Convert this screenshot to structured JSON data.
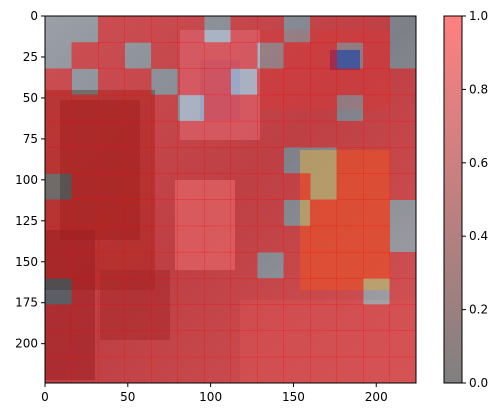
{
  "chart_data": {
    "type": "heatmap",
    "title": "",
    "xlabel": "",
    "ylabel": "",
    "x_range": [
      0,
      224
    ],
    "y_range": [
      0,
      224
    ],
    "y_inverted": true,
    "grid_size": 14,
    "cell_size": 16,
    "xticks": [
      0,
      50,
      100,
      150,
      200
    ],
    "yticks": [
      0,
      25,
      50,
      75,
      100,
      125,
      150,
      175,
      200
    ],
    "colorbar": {
      "min": 0.0,
      "max": 1.0,
      "ticks": [
        "0.0",
        "0.2",
        "0.4",
        "0.6",
        "0.8",
        "1.0"
      ],
      "color_low": "#808080",
      "color_high": "#ff8080"
    },
    "overlay_color": "#ff0000",
    "mask": [
      [
        0,
        0,
        1,
        1,
        1,
        1,
        0,
        1,
        1,
        0,
        1,
        1,
        1,
        0
      ],
      [
        0,
        1,
        1,
        0,
        1,
        1,
        1,
        1,
        0,
        1,
        1,
        0,
        1,
        0
      ],
      [
        1,
        0,
        1,
        1,
        0,
        1,
        1,
        0,
        1,
        1,
        1,
        1,
        1,
        1
      ],
      [
        1,
        1,
        1,
        1,
        1,
        0,
        1,
        1,
        1,
        1,
        1,
        0,
        1,
        1
      ],
      [
        1,
        1,
        1,
        1,
        1,
        1,
        1,
        1,
        1,
        1,
        1,
        1,
        1,
        1
      ],
      [
        1,
        1,
        1,
        1,
        1,
        1,
        1,
        1,
        1,
        0,
        0,
        1,
        1,
        1
      ],
      [
        0,
        1,
        1,
        1,
        1,
        1,
        1,
        1,
        1,
        1,
        0,
        1,
        1,
        1
      ],
      [
        1,
        1,
        1,
        1,
        1,
        1,
        1,
        1,
        1,
        0,
        1,
        1,
        1,
        0
      ],
      [
        1,
        1,
        1,
        1,
        1,
        1,
        1,
        1,
        1,
        1,
        1,
        1,
        1,
        0
      ],
      [
        1,
        1,
        1,
        1,
        1,
        1,
        1,
        1,
        0,
        1,
        1,
        1,
        1,
        1
      ],
      [
        0,
        1,
        1,
        1,
        1,
        1,
        1,
        1,
        1,
        1,
        1,
        1,
        0,
        1
      ],
      [
        1,
        1,
        1,
        1,
        1,
        1,
        1,
        1,
        1,
        1,
        1,
        1,
        1,
        1
      ],
      [
        1,
        1,
        1,
        1,
        1,
        1,
        1,
        1,
        1,
        1,
        1,
        1,
        1,
        1
      ],
      [
        1,
        1,
        1,
        1,
        1,
        1,
        1,
        1,
        1,
        1,
        1,
        1,
        1,
        1
      ]
    ]
  }
}
